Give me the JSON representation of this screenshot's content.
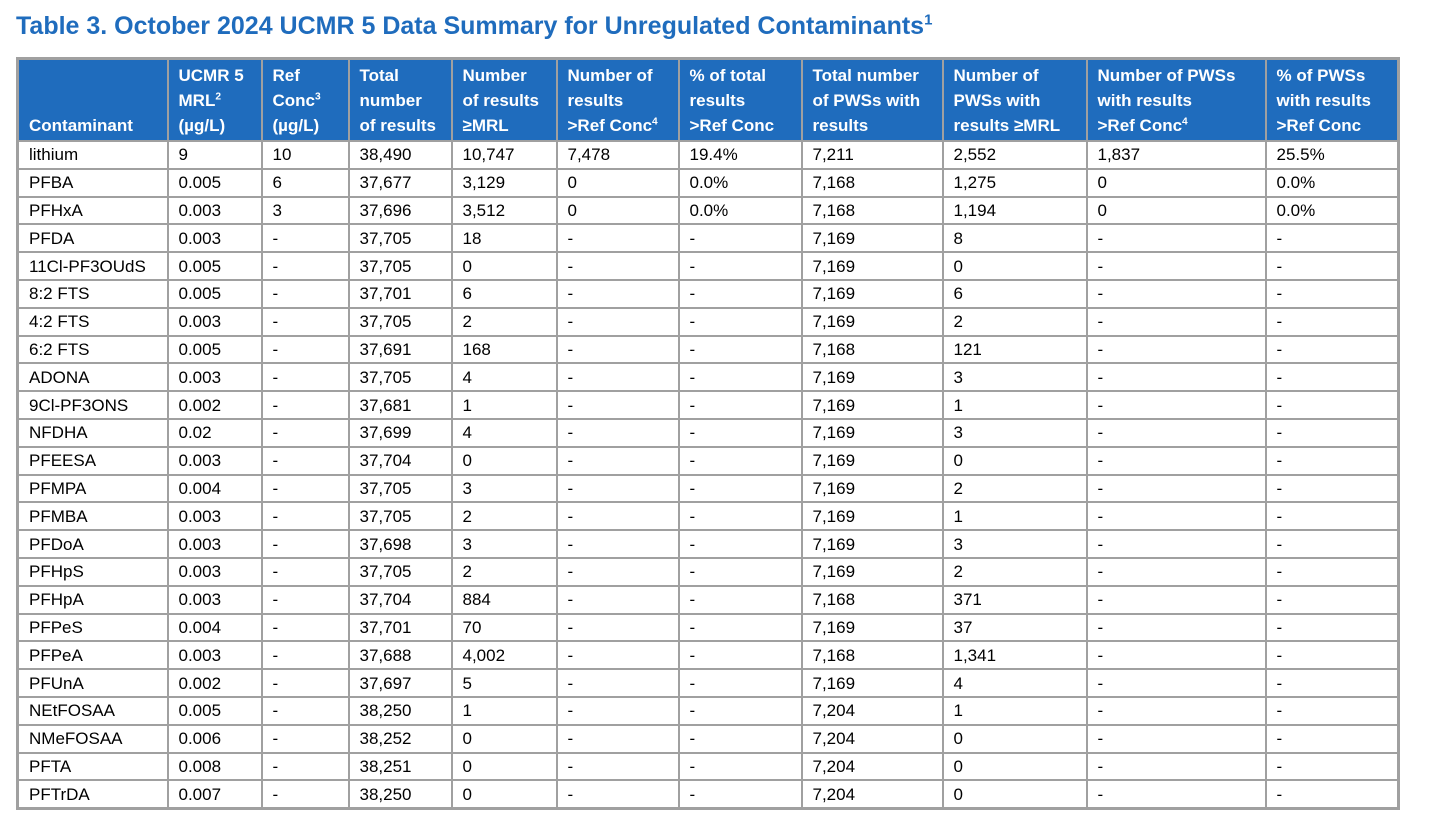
{
  "title": {
    "text": "Table 3. October 2024 UCMR 5 Data Summary for Unregulated Contaminants",
    "sup": "1"
  },
  "table": {
    "header": [
      [
        "Contaminant"
      ],
      [
        "UCMR 5",
        {
          "text": "MRL",
          "sup": "2"
        },
        "(µg/L)"
      ],
      [
        "Ref",
        {
          "text": "Conc",
          "sup": "3"
        },
        "(µg/L)"
      ],
      [
        "Total",
        "number",
        "of results"
      ],
      [
        "Number",
        "of results",
        "≥MRL"
      ],
      [
        "Number of",
        "results",
        {
          "text": ">Ref Conc",
          "sup": "4"
        }
      ],
      [
        "% of total",
        "results",
        ">Ref Conc"
      ],
      [
        "Total number",
        "of PWSs with",
        "results"
      ],
      [
        "Number of",
        "PWSs with",
        "results ≥MRL"
      ],
      [
        "Number of PWSs",
        "with results",
        {
          "text": ">Ref Conc",
          "sup": "4"
        }
      ],
      [
        "% of PWSs",
        "with results",
        ">Ref Conc"
      ]
    ],
    "rows": [
      [
        "lithium",
        "9",
        "10",
        "38,490",
        "10,747",
        "7,478",
        "19.4%",
        "7,211",
        "2,552",
        "1,837",
        "25.5%"
      ],
      [
        "PFBA",
        "0.005",
        "6",
        "37,677",
        "3,129",
        "0",
        "0.0%",
        "7,168",
        "1,275",
        "0",
        "0.0%"
      ],
      [
        "PFHxA",
        "0.003",
        "3",
        "37,696",
        "3,512",
        "0",
        "0.0%",
        "7,168",
        "1,194",
        "0",
        "0.0%"
      ],
      [
        "PFDA",
        "0.003",
        "-",
        "37,705",
        "18",
        "-",
        "-",
        "7,169",
        "8",
        "-",
        "-"
      ],
      [
        "11Cl-PF3OUdS",
        "0.005",
        "-",
        "37,705",
        "0",
        "-",
        "-",
        "7,169",
        "0",
        "-",
        "-"
      ],
      [
        "8:2 FTS",
        "0.005",
        "-",
        "37,701",
        "6",
        "-",
        "-",
        "7,169",
        "6",
        "-",
        "-"
      ],
      [
        "4:2 FTS",
        "0.003",
        "-",
        "37,705",
        "2",
        "-",
        "-",
        "7,169",
        "2",
        "-",
        "-"
      ],
      [
        "6:2 FTS",
        "0.005",
        "-",
        "37,691",
        "168",
        "-",
        "-",
        "7,168",
        "121",
        "-",
        "-"
      ],
      [
        "ADONA",
        "0.003",
        "-",
        "37,705",
        "4",
        "-",
        "-",
        "7,169",
        "3",
        "-",
        "-"
      ],
      [
        "9Cl-PF3ONS",
        "0.002",
        "-",
        "37,681",
        "1",
        "-",
        "-",
        "7,169",
        "1",
        "-",
        "-"
      ],
      [
        "NFDHA",
        "0.02",
        "-",
        "37,699",
        "4",
        "-",
        "-",
        "7,169",
        "3",
        "-",
        "-"
      ],
      [
        "PFEESA",
        "0.003",
        "-",
        "37,704",
        "0",
        "-",
        "-",
        "7,169",
        "0",
        "-",
        "-"
      ],
      [
        "PFMPA",
        "0.004",
        "-",
        "37,705",
        "3",
        "-",
        "-",
        "7,169",
        "2",
        "-",
        "-"
      ],
      [
        "PFMBA",
        "0.003",
        "-",
        "37,705",
        "2",
        "-",
        "-",
        "7,169",
        "1",
        "-",
        "-"
      ],
      [
        "PFDoA",
        "0.003",
        "-",
        "37,698",
        "3",
        "-",
        "-",
        "7,169",
        "3",
        "-",
        "-"
      ],
      [
        "PFHpS",
        "0.003",
        "-",
        "37,705",
        "2",
        "-",
        "-",
        "7,169",
        "2",
        "-",
        "-"
      ],
      [
        "PFHpA",
        "0.003",
        "-",
        "37,704",
        "884",
        "-",
        "-",
        "7,168",
        "371",
        "-",
        "-"
      ],
      [
        "PFPeS",
        "0.004",
        "-",
        "37,701",
        "70",
        "-",
        "-",
        "7,169",
        "37",
        "-",
        "-"
      ],
      [
        "PFPeA",
        "0.003",
        "-",
        "37,688",
        "4,002",
        "-",
        "-",
        "7,168",
        "1,341",
        "-",
        "-"
      ],
      [
        "PFUnA",
        "0.002",
        "-",
        "37,697",
        "5",
        "-",
        "-",
        "7,169",
        "4",
        "-",
        "-"
      ],
      [
        "NEtFOSAA",
        "0.005",
        "-",
        "38,250",
        "1",
        "-",
        "-",
        "7,204",
        "1",
        "-",
        "-"
      ],
      [
        "NMeFOSAA",
        "0.006",
        "-",
        "38,252",
        "0",
        "-",
        "-",
        "7,204",
        "0",
        "-",
        "-"
      ],
      [
        "PFTA",
        "0.008",
        "-",
        "38,251",
        "0",
        "-",
        "-",
        "7,204",
        "0",
        "-",
        "-"
      ],
      [
        "PFTrDA",
        "0.007",
        "-",
        "38,250",
        "0",
        "-",
        "-",
        "7,204",
        "0",
        "-",
        "-"
      ]
    ]
  }
}
